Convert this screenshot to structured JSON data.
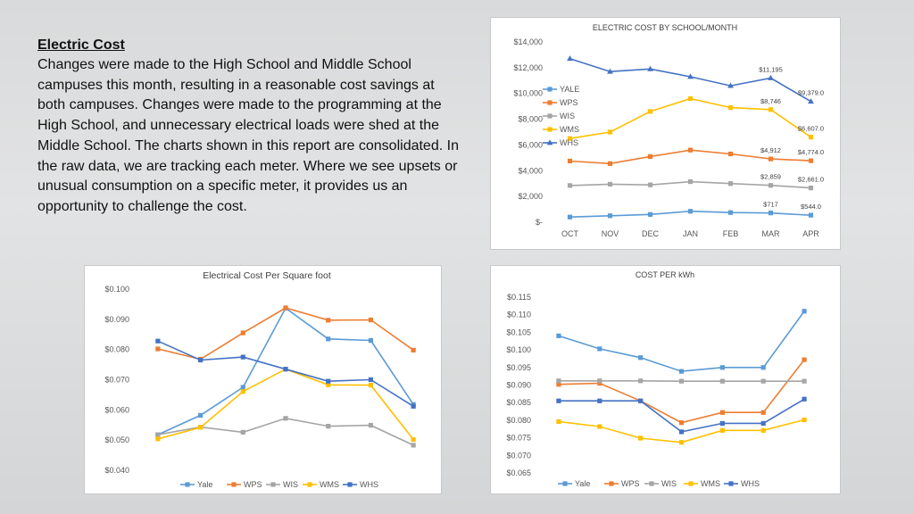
{
  "text": {
    "heading": "Electric Cost",
    "body": "Changes were made to the High School and Middle School campuses this month, resulting in a reasonable cost savings at both campuses. Changes were made to the programming at the High School, and unnecessary electrical loads were shed at the Middle School. The charts shown in this report are consolidated. In the raw data, we are tracking each meter. Where we see upsets or unusual consumption on a specific meter, it provides us an opportunity to challenge the cost."
  },
  "colors": {
    "Yale": "#5b9bd5",
    "WPS": "#ed7d31",
    "WIS": "#a5a5a5",
    "WMS": "#ffc000",
    "WHS": "#4472c4"
  },
  "chart_data": [
    {
      "id": "electric",
      "type": "line",
      "title": "ELECTRIC COST BY SCHOOL/MONTH",
      "categories": [
        "OCT",
        "NOV",
        "DEC",
        "JAN",
        "FEB",
        "MAR",
        "APR"
      ],
      "ylim": [
        0,
        14000
      ],
      "yticks": [
        0,
        2000,
        4000,
        6000,
        8000,
        10000,
        12000,
        14000
      ],
      "ytick_labels": [
        "$-",
        "$2,000",
        "$4,000",
        "$6,000",
        "$8,000",
        "$10,000",
        "$12,000",
        "$14,000"
      ],
      "legend": "left-inside",
      "grid": false,
      "series": [
        {
          "name": "YALE",
          "key": "Yale",
          "marker": "square",
          "values": [
            400,
            500,
            600,
            850,
            750,
            717,
            544
          ],
          "labels": [
            "",
            "",
            "",
            "",
            "",
            "$717",
            "$544.0"
          ]
        },
        {
          "name": "WPS",
          "key": "WPS",
          "marker": "square",
          "values": [
            4750,
            4550,
            5100,
            5600,
            5300,
            4912,
            4774
          ],
          "labels": [
            "",
            "",
            "",
            "",
            "",
            "$4,912",
            "$4,774.0"
          ]
        },
        {
          "name": "WIS",
          "key": "WIS",
          "marker": "square",
          "values": [
            2850,
            2950,
            2900,
            3150,
            3000,
            2859,
            2661
          ],
          "labels": [
            "",
            "",
            "",
            "",
            "",
            "$2,859",
            "$2,661.0"
          ]
        },
        {
          "name": "WMS",
          "key": "WMS",
          "marker": "square",
          "values": [
            6500,
            7000,
            8600,
            9600,
            8900,
            8746,
            6607
          ],
          "labels": [
            "",
            "",
            "",
            "",
            "",
            "$8,746",
            "$6,607.0"
          ]
        },
        {
          "name": "WHS",
          "key": "WHS",
          "marker": "triangle",
          "values": [
            12700,
            11700,
            11900,
            11300,
            10600,
            11195,
            9379
          ],
          "labels": [
            "",
            "",
            "",
            "",
            "",
            "$11,195",
            "$9,379.0"
          ]
        }
      ]
    },
    {
      "id": "sqft",
      "type": "line",
      "title": "Electrical Cost Per Square foot",
      "categories": [
        "OCT",
        "NOV",
        "DEC",
        "JAN",
        "FEB",
        "MAR",
        "APR"
      ],
      "ylim": [
        0.04,
        0.1
      ],
      "yticks": [
        0.04,
        0.05,
        0.06,
        0.07,
        0.08,
        0.09,
        0.1
      ],
      "ytick_labels": [
        "$0.040",
        "$0.050",
        "$0.060",
        "$0.070",
        "$0.080",
        "$0.090",
        "$0.100"
      ],
      "legend": "bottom",
      "grid": false,
      "series": [
        {
          "name": "Yale",
          "key": "Yale",
          "marker": "square",
          "values": [
            0.0518,
            0.0582,
            0.0675,
            0.0937,
            0.0835,
            0.083,
            0.0618
          ]
        },
        {
          "name": "WPS",
          "key": "WPS",
          "marker": "square",
          "values": [
            0.0802,
            0.0768,
            0.0855,
            0.0938,
            0.0897,
            0.0898,
            0.0798
          ]
        },
        {
          "name": "WIS",
          "key": "WIS",
          "marker": "square",
          "values": [
            0.0518,
            0.0543,
            0.0526,
            0.0572,
            0.0546,
            0.0549,
            0.0483
          ]
        },
        {
          "name": "WMS",
          "key": "WMS",
          "marker": "square",
          "values": [
            0.0504,
            0.0542,
            0.0661,
            0.0735,
            0.0683,
            0.0682,
            0.0502
          ]
        },
        {
          "name": "WHS",
          "key": "WHS",
          "marker": "square",
          "values": [
            0.0828,
            0.0765,
            0.0775,
            0.0735,
            0.0695,
            0.07,
            0.0612
          ]
        }
      ]
    },
    {
      "id": "kwh",
      "type": "line",
      "title": "COST PER kWh",
      "categories": [
        "OCT",
        "NOV",
        "DEC",
        "JAN",
        "FEB",
        "MAR",
        "APR"
      ],
      "ylim": [
        0.065,
        0.115
      ],
      "yticks": [
        0.065,
        0.07,
        0.075,
        0.08,
        0.085,
        0.09,
        0.095,
        0.1,
        0.105,
        0.11,
        0.115
      ],
      "ytick_labels": [
        "$0.065",
        "$0.070",
        "$0.075",
        "$0.080",
        "$0.085",
        "$0.090",
        "$0.095",
        "$0.100",
        "$0.105",
        "$0.110",
        "$0.115"
      ],
      "legend": "bottom",
      "grid": false,
      "series": [
        {
          "name": "Yale",
          "key": "Yale",
          "marker": "square",
          "values": [
            0.104,
            0.1003,
            0.0978,
            0.0939,
            0.095,
            0.095,
            0.111
          ]
        },
        {
          "name": "WPS",
          "key": "WPS",
          "marker": "square",
          "values": [
            0.0902,
            0.0905,
            0.0855,
            0.0793,
            0.0822,
            0.0822,
            0.0972
          ]
        },
        {
          "name": "WIS",
          "key": "WIS",
          "marker": "square",
          "values": [
            0.0912,
            0.0912,
            0.0912,
            0.0911,
            0.0911,
            0.0911,
            0.0911
          ]
        },
        {
          "name": "WMS",
          "key": "WMS",
          "marker": "square",
          "values": [
            0.0796,
            0.0782,
            0.0749,
            0.0737,
            0.0771,
            0.0771,
            0.0801
          ]
        },
        {
          "name": "WHS",
          "key": "WHS",
          "marker": "square",
          "values": [
            0.0855,
            0.0855,
            0.0855,
            0.0767,
            0.0791,
            0.0791,
            0.086
          ]
        }
      ]
    }
  ]
}
